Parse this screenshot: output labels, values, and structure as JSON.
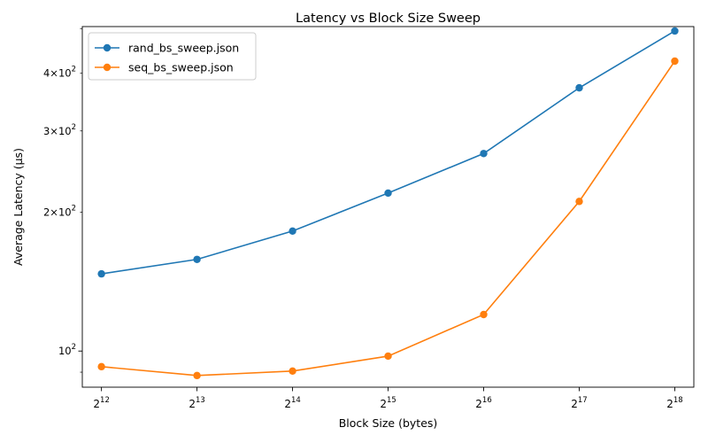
{
  "chart_data": {
    "type": "line",
    "title": "Latency vs Block Size Sweep",
    "xlabel": "Block Size (bytes)",
    "ylabel": "Average Latency (µs)",
    "x_scale": "log2",
    "y_scale": "log10",
    "x": [
      4096,
      8192,
      16384,
      32768,
      65536,
      131072,
      262144
    ],
    "x_ticks": [
      {
        "value": 4096,
        "base": "2",
        "exp": "12"
      },
      {
        "value": 8192,
        "base": "2",
        "exp": "13"
      },
      {
        "value": 16384,
        "base": "2",
        "exp": "14"
      },
      {
        "value": 32768,
        "base": "2",
        "exp": "15"
      },
      {
        "value": 65536,
        "base": "2",
        "exp": "16"
      },
      {
        "value": 131072,
        "base": "2",
        "exp": "17"
      },
      {
        "value": 262144,
        "base": "2",
        "exp": "18"
      }
    ],
    "y_ticks": [
      {
        "value": 100,
        "mant": "",
        "base": "10",
        "exp": "2"
      },
      {
        "value": 200,
        "mant": "2×",
        "base": "10",
        "exp": "2"
      },
      {
        "value": 300,
        "mant": "3×",
        "base": "10",
        "exp": "2"
      },
      {
        "value": 400,
        "mant": "4×",
        "base": "10",
        "exp": "2"
      }
    ],
    "xlim": [
      3565,
      301000
    ],
    "ylim": [
      83.5,
      505
    ],
    "grid": false,
    "legend_position": "top-left",
    "series": [
      {
        "name": "rand_bs_sweep.json",
        "color": "#1f77b4",
        "values": [
          147,
          158,
          182,
          220,
          268,
          372,
          494
        ]
      },
      {
        "name": "seq_bs_sweep.json",
        "color": "#ff7f0e",
        "values": [
          92.5,
          88.5,
          90.5,
          97.5,
          120,
          211,
          425
        ]
      }
    ]
  }
}
